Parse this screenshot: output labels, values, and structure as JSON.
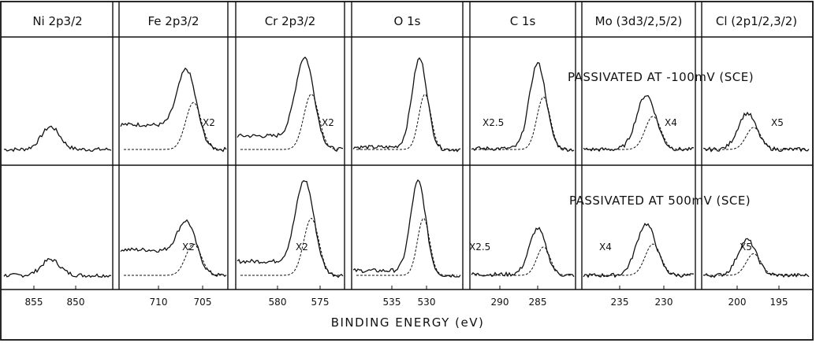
{
  "chart_data": {
    "type": "line",
    "x_axis_label": "BINDING ENERGY (eV)",
    "conditions": [
      "PASSIVATED AT -100mV (SCE)",
      "PASSIVATED AT 500mV (SCE)"
    ],
    "panels": [
      {
        "title": "Ni 2p3/2",
        "ticks": [
          "855",
          "850"
        ],
        "multipliers": [
          "",
          ""
        ],
        "peaks": [
          {
            "center_eV": 853.0,
            "height": 0.25
          },
          {
            "center_eV": 853.0,
            "height": 0.17
          }
        ],
        "baseline": [
          0.0,
          0.0
        ]
      },
      {
        "title": "Fe 2p3/2",
        "ticks": [
          "710",
          "705"
        ],
        "multipliers": [
          "X2",
          "X2"
        ],
        "peaks": [
          {
            "center_eV": 706.8,
            "height": 0.85
          },
          {
            "center_eV": 706.8,
            "height": 0.55
          }
        ],
        "baseline": [
          0.55,
          0.55
        ]
      },
      {
        "title": "Cr 2p3/2",
        "ticks": [
          "580",
          "575"
        ],
        "multipliers": [
          "X2",
          "X2"
        ],
        "peaks": [
          {
            "center_eV": 576.8,
            "height": 1.0
          },
          {
            "center_eV": 576.8,
            "height": 1.0
          }
        ],
        "baseline": [
          0.3,
          0.3
        ]
      },
      {
        "title": "O 1s",
        "ticks": [
          "535",
          "530"
        ],
        "multipliers": [
          "",
          ""
        ],
        "peaks": [
          {
            "center_eV": 531.0,
            "height": 1.0
          },
          {
            "center_eV": 531.2,
            "height": 1.0
          }
        ],
        "baseline": [
          0.05,
          0.1
        ]
      },
      {
        "title": "C 1s",
        "ticks": [
          "290",
          "285"
        ],
        "multipliers": [
          "X2.5",
          "X2.5"
        ],
        "peaks": [
          {
            "center_eV": 285.0,
            "height": 0.95
          },
          {
            "center_eV": 285.0,
            "height": 0.5
          }
        ],
        "baseline": [
          0.02,
          0.02
        ]
      },
      {
        "title": "Mo (3d3/2,5/2)",
        "ticks": [
          "235",
          "230"
        ],
        "multipliers": [
          "X4",
          "X4"
        ],
        "peaks": [
          {
            "center_eV": 232.0,
            "height": 0.6
          },
          {
            "center_eV": 232.0,
            "height": 0.55
          }
        ],
        "baseline": [
          0.0,
          0.0
        ]
      },
      {
        "title": "Cl (2p1/2,3/2)",
        "ticks": [
          "200",
          "195"
        ],
        "multipliers": [
          "X5",
          "X5"
        ],
        "peaks": [
          {
            "center_eV": 198.8,
            "height": 0.4
          },
          {
            "center_eV": 198.8,
            "height": 0.38
          }
        ],
        "baseline": [
          0.0,
          0.0
        ]
      }
    ]
  }
}
